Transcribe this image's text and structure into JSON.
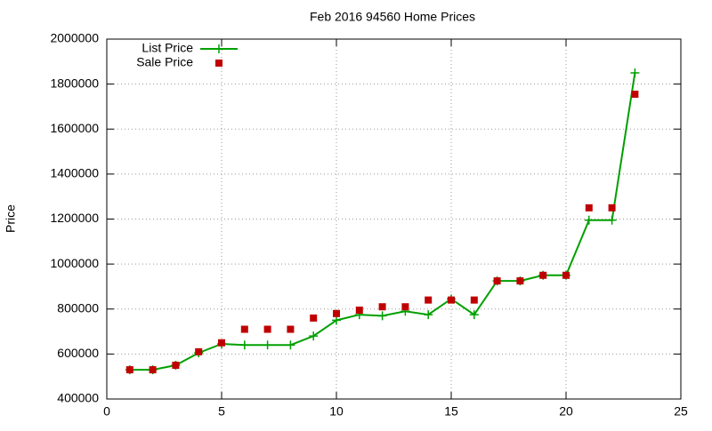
{
  "chart_data": {
    "type": "line",
    "title": "Feb 2016 94560 Home Prices",
    "y_label": "Price",
    "x": [
      1,
      2,
      3,
      4,
      5,
      6,
      7,
      8,
      9,
      10,
      11,
      12,
      13,
      14,
      15,
      16,
      17,
      18,
      19,
      20,
      21,
      22,
      23
    ],
    "series": [
      {
        "name": "List Price",
        "color": "#00a000",
        "style": "linespoints",
        "marker": "plus",
        "values": [
          530000,
          530000,
          550000,
          605000,
          645000,
          640000,
          640000,
          640000,
          680000,
          750000,
          775000,
          770000,
          790000,
          775000,
          845000,
          775000,
          925000,
          925000,
          950000,
          950000,
          1195000,
          1195000,
          1850000
        ]
      },
      {
        "name": "Sale Price",
        "color": "#c00000",
        "style": "points",
        "marker": "square",
        "values": [
          530000,
          530000,
          550000,
          610000,
          650000,
          710000,
          710000,
          710000,
          760000,
          780000,
          795000,
          810000,
          810000,
          840000,
          840000,
          840000,
          925000,
          925000,
          950000,
          950000,
          1250000,
          1250000,
          1755000
        ]
      }
    ],
    "xlim": [
      0,
      25
    ],
    "xticks": [
      0,
      5,
      10,
      15,
      20,
      25
    ],
    "ylim": [
      400000,
      2000000
    ],
    "yticks": [
      400000,
      600000,
      800000,
      1000000,
      1200000,
      1400000,
      1600000,
      1800000,
      2000000
    ],
    "grid": true,
    "legend": "top-left"
  }
}
